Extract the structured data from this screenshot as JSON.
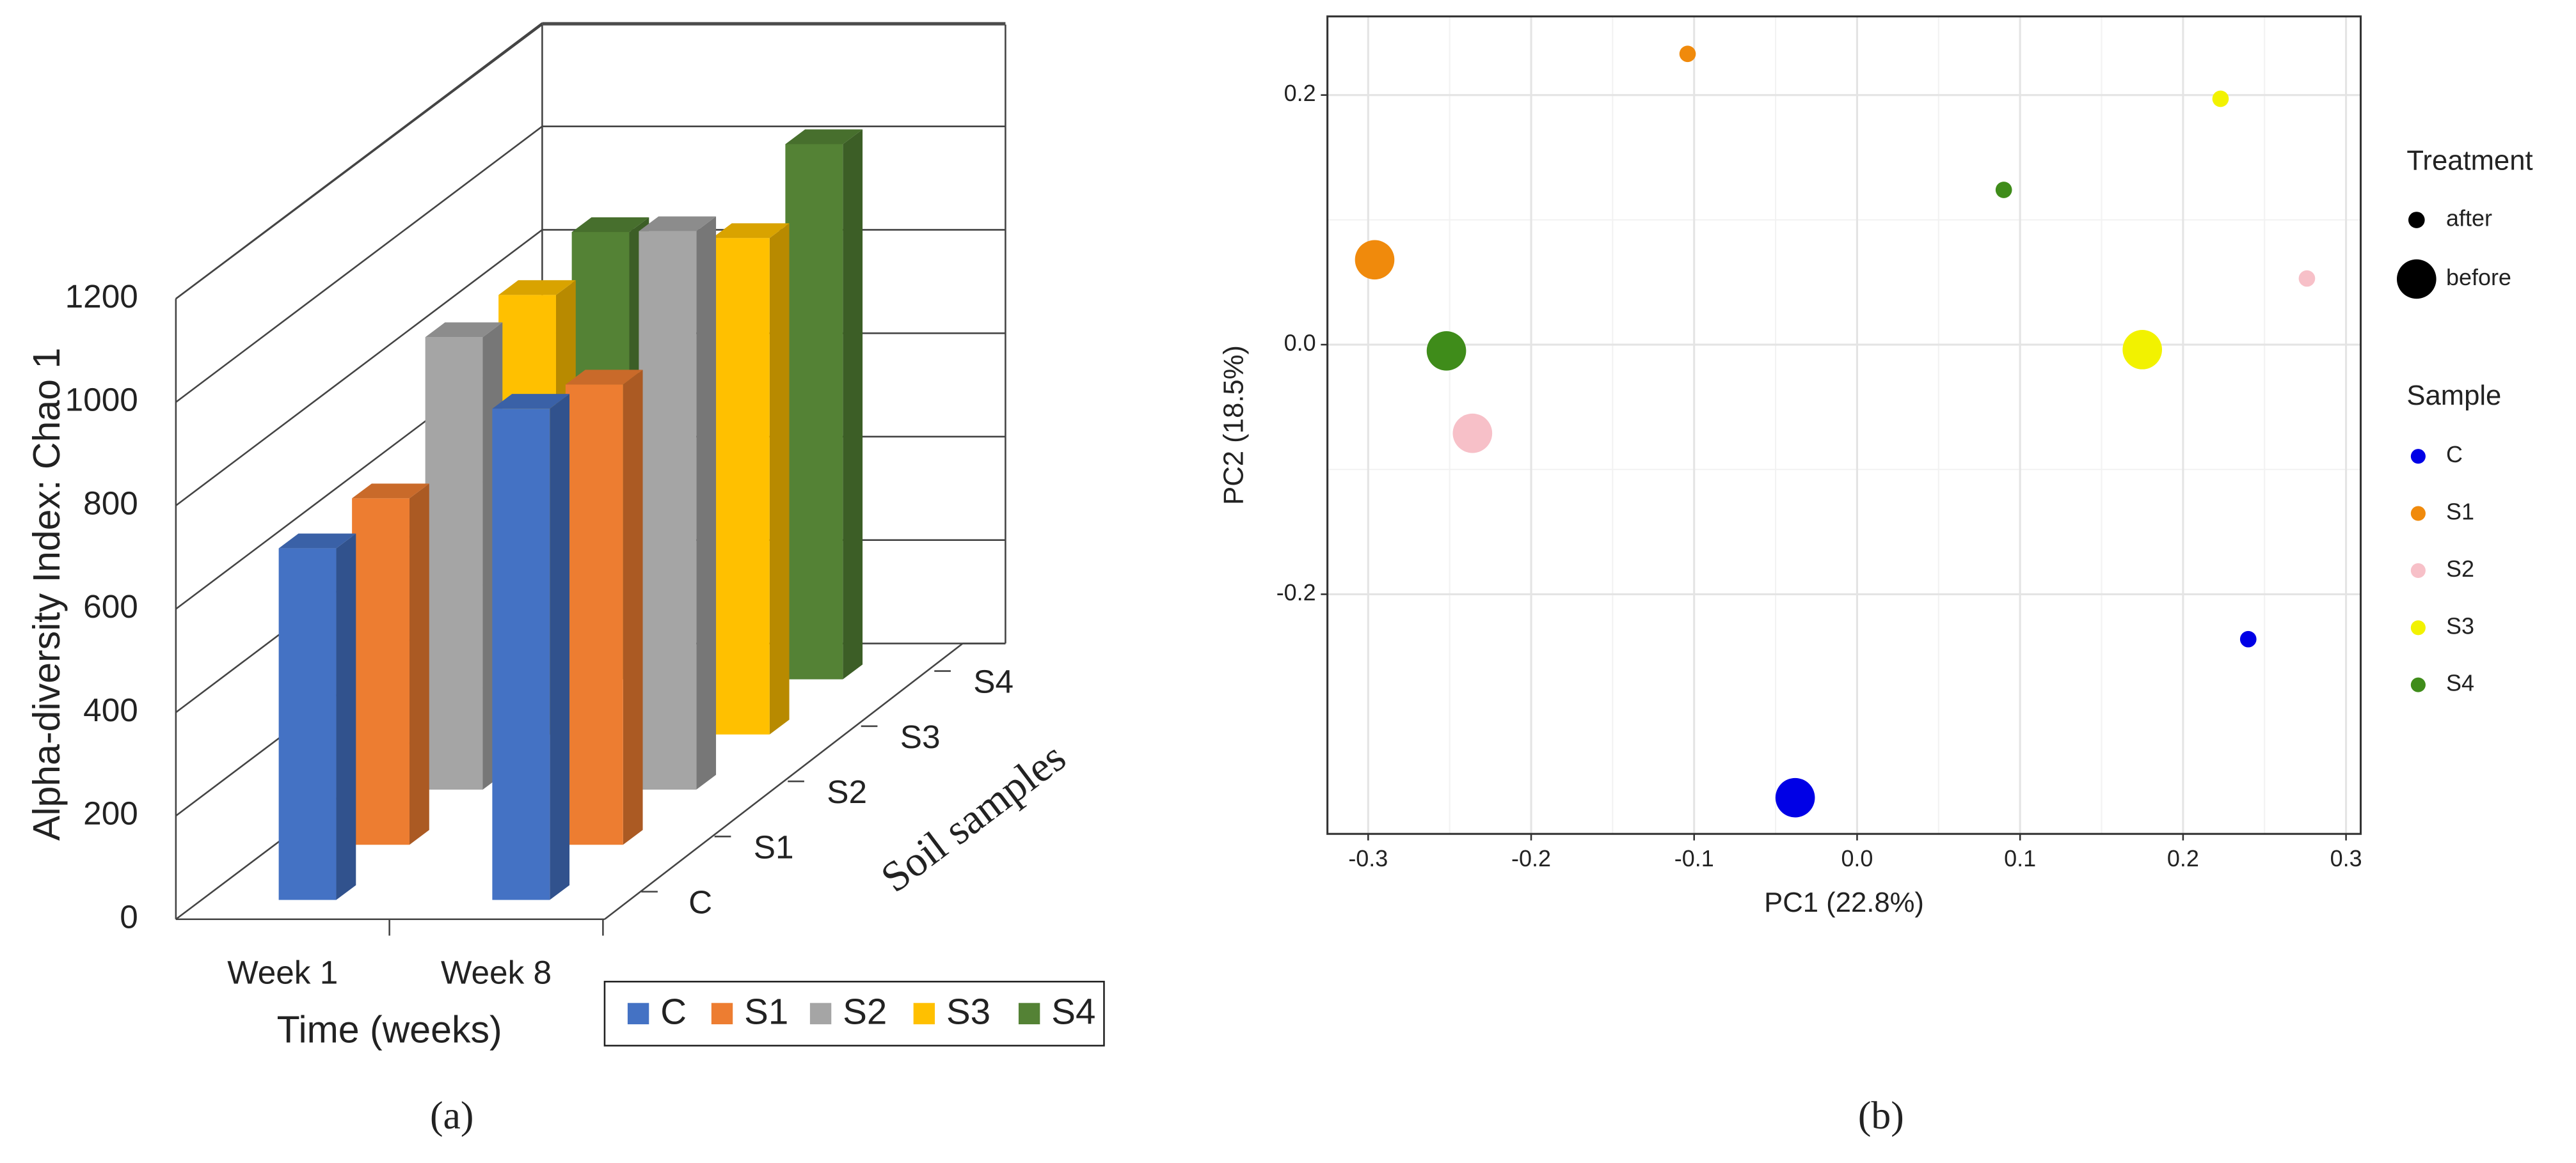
{
  "chart_data": [
    {
      "type": "bar3d",
      "ylabel": "Alpha-diversity Index: Chao 1",
      "xlabel": "Time (weeks)",
      "zlabel": "Soil samples",
      "caption": "(a)",
      "categories": [
        "Week 1",
        "Week 8"
      ],
      "series": [
        {
          "name": "C",
          "color": "#4472c4",
          "values": [
            680,
            950
          ]
        },
        {
          "name": "S1",
          "color": "#ed7d31",
          "values": [
            670,
            890
          ]
        },
        {
          "name": "S2",
          "color": "#a5a5a5",
          "values": [
            875,
            1080
          ]
        },
        {
          "name": "S3",
          "color": "#ffc000",
          "values": [
            850,
            960
          ]
        },
        {
          "name": "S4",
          "color": "#548235",
          "values": [
            865,
            1035
          ]
        }
      ],
      "ylim": [
        0,
        1200
      ],
      "yticks": [
        0,
        200,
        400,
        600,
        800,
        1000,
        1200
      ],
      "grid": true
    },
    {
      "type": "scatter",
      "xlabel": "PC1 (22.8%)",
      "ylabel": "PC2 (18.5%)",
      "caption": "(b)",
      "size_legend": {
        "title": "Treatment",
        "levels": [
          "after",
          "before"
        ]
      },
      "color_legend_title": "Sample",
      "series": [
        {
          "name": "C",
          "color": "#0000e6",
          "x": [
            0.24,
            -0.038
          ],
          "values": [
            -0.236,
            -0.363
          ],
          "treatment": [
            "after",
            "before"
          ]
        },
        {
          "name": "S1",
          "color": "#f08a0c",
          "x": [
            -0.104,
            -0.296
          ],
          "values": [
            0.233,
            0.068
          ],
          "treatment": [
            "after",
            "before"
          ]
        },
        {
          "name": "S2",
          "color": "#f7c0c8",
          "x": [
            0.276,
            -0.236
          ],
          "values": [
            0.053,
            -0.071
          ],
          "treatment": [
            "after",
            "before"
          ]
        },
        {
          "name": "S3",
          "color": "#f2f200",
          "x": [
            0.223,
            0.175
          ],
          "values": [
            0.197,
            -0.004
          ],
          "treatment": [
            "after",
            "before"
          ]
        },
        {
          "name": "S4",
          "color": "#3f8c1a",
          "x": [
            0.09,
            -0.252
          ],
          "values": [
            0.124,
            -0.005
          ],
          "treatment": [
            "after",
            "before"
          ]
        }
      ],
      "xlim": [
        -0.325,
        0.309
      ],
      "ylim": [
        -0.392,
        0.263
      ],
      "xticks": [
        -0.3,
        -0.2,
        -0.1,
        {
          "value": 0,
          "label": "0.0"
        },
        0.1,
        0.2,
        0.3
      ],
      "yticks": [
        -0.2,
        {
          "value": 0,
          "label": "0.0"
        },
        0.2
      ],
      "grid": true
    }
  ]
}
